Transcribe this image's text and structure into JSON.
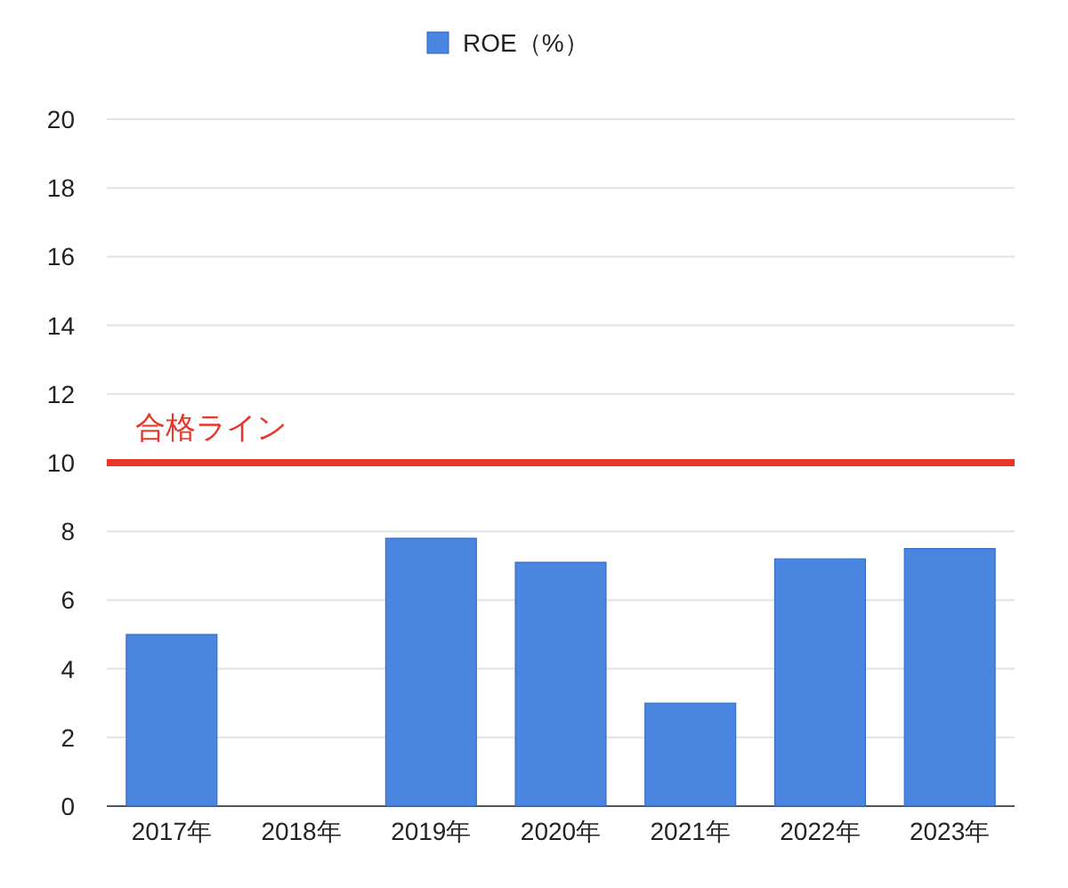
{
  "chart_data": {
    "type": "bar",
    "categories": [
      "2017年",
      "2018年",
      "2019年",
      "2020年",
      "2021年",
      "2022年",
      "2023年"
    ],
    "series": [
      {
        "name": "ROE（%）",
        "color": "#4a86e0",
        "values": [
          5.0,
          null,
          7.8,
          7.1,
          3.0,
          7.2,
          7.5
        ]
      }
    ],
    "ylim": [
      0,
      20
    ],
    "yticks": [
      0,
      2,
      4,
      6,
      8,
      10,
      12,
      14,
      16,
      18,
      20
    ],
    "grid": "y",
    "legend": "top",
    "ref_lines": [
      {
        "axis": "y",
        "value": 10,
        "label": "合格ライン",
        "color": "#e8372a"
      }
    ]
  }
}
